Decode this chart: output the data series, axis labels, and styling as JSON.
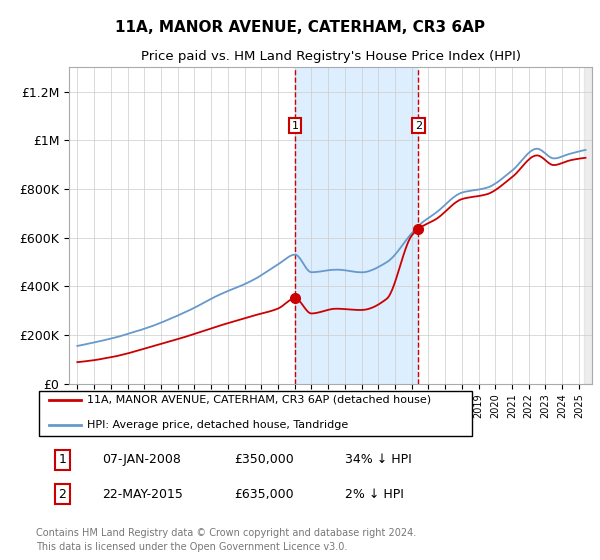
{
  "title": "11A, MANOR AVENUE, CATERHAM, CR3 6AP",
  "subtitle": "Price paid vs. HM Land Registry's House Price Index (HPI)",
  "legend_red": "11A, MANOR AVENUE, CATERHAM, CR3 6AP (detached house)",
  "legend_blue": "HPI: Average price, detached house, Tandridge",
  "marker1_date": "07-JAN-2008",
  "marker1_price": "£350,000",
  "marker1_hpi": "34% ↓ HPI",
  "marker2_date": "22-MAY-2015",
  "marker2_price": "£635,000",
  "marker2_hpi": "2% ↓ HPI",
  "footer": "Contains HM Land Registry data © Crown copyright and database right 2024.\nThis data is licensed under the Open Government Licence v3.0.",
  "red_color": "#cc0000",
  "blue_color": "#6699cc",
  "shade_color": "#ddeeff",
  "grid_color": "#cccccc",
  "marker1_x": 2008.03,
  "marker2_x": 2015.39,
  "marker1_y_red": 350000,
  "marker2_y_red": 635000,
  "ylim": [
    0,
    1300000
  ],
  "yticks": [
    0,
    200000,
    400000,
    600000,
    800000,
    1000000,
    1200000
  ],
  "ytick_labels": [
    "£0",
    "£200K",
    "£400K",
    "£600K",
    "£800K",
    "£1M",
    "£1.2M"
  ],
  "xlim_min": 1994.5,
  "xlim_max": 2025.8,
  "xticks_start": 1995,
  "xticks_end": 2025,
  "hpi_anchors": [
    [
      1995.0,
      155000
    ],
    [
      1997.0,
      185000
    ],
    [
      1999.0,
      225000
    ],
    [
      2001.5,
      295000
    ],
    [
      2003.5,
      365000
    ],
    [
      2005.5,
      425000
    ],
    [
      2007.0,
      490000
    ],
    [
      2008.03,
      530000
    ],
    [
      2009.0,
      458000
    ],
    [
      2010.5,
      468000
    ],
    [
      2012.0,
      458000
    ],
    [
      2013.5,
      498000
    ],
    [
      2015.0,
      618000
    ],
    [
      2015.39,
      648000
    ],
    [
      2016.5,
      705000
    ],
    [
      2018.0,
      785000
    ],
    [
      2019.5,
      805000
    ],
    [
      2021.0,
      875000
    ],
    [
      2022.5,
      965000
    ],
    [
      2023.5,
      925000
    ],
    [
      2024.5,
      945000
    ],
    [
      2025.4,
      960000
    ]
  ],
  "red_anchors": [
    [
      1995.0,
      88000
    ],
    [
      1997.0,
      108000
    ],
    [
      1999.0,
      143000
    ],
    [
      2001.5,
      193000
    ],
    [
      2003.5,
      238000
    ],
    [
      2005.5,
      278000
    ],
    [
      2007.0,
      308000
    ],
    [
      2008.03,
      350000
    ],
    [
      2009.0,
      288000
    ],
    [
      2010.5,
      308000
    ],
    [
      2012.0,
      303000
    ],
    [
      2013.5,
      348000
    ],
    [
      2015.0,
      608000
    ],
    [
      2015.39,
      635000
    ],
    [
      2016.5,
      678000
    ],
    [
      2018.0,
      758000
    ],
    [
      2019.5,
      778000
    ],
    [
      2021.0,
      848000
    ],
    [
      2022.5,
      938000
    ],
    [
      2023.5,
      898000
    ],
    [
      2024.5,
      918000
    ],
    [
      2025.4,
      928000
    ]
  ]
}
